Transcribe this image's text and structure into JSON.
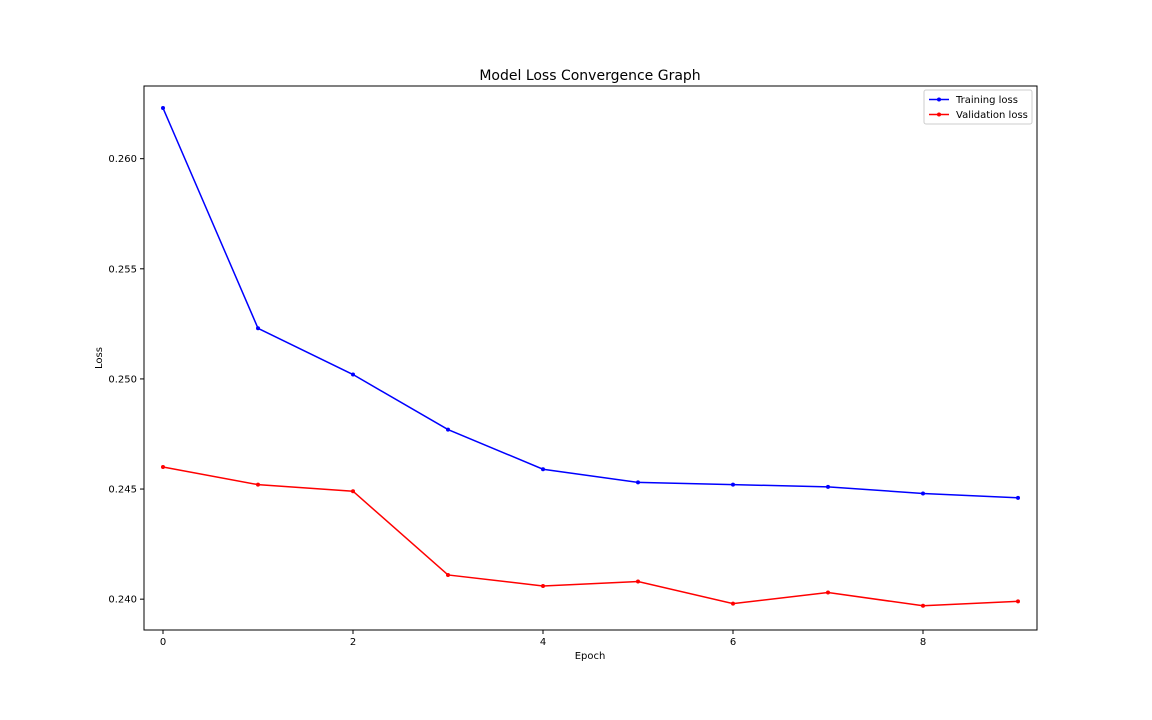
{
  "chart_data": {
    "type": "line",
    "title": "Model Loss Convergence Graph",
    "xlabel": "Epoch",
    "ylabel": "Loss",
    "x": [
      0,
      1,
      2,
      3,
      4,
      5,
      6,
      7,
      8,
      9
    ],
    "xlim": [
      -0.2,
      9.2
    ],
    "ylim": [
      0.2386,
      0.2633
    ],
    "xticks": [
      0,
      2,
      4,
      6,
      8
    ],
    "yticks": [
      0.24,
      0.245,
      0.25,
      0.255,
      0.26
    ],
    "ytick_labels": [
      "0.240",
      "0.245",
      "0.250",
      "0.255",
      "0.260"
    ],
    "grid": false,
    "legend_position": "top-right",
    "series": [
      {
        "name": "Training loss",
        "color": "#0000ff",
        "marker": "dot",
        "values": [
          0.2623,
          0.2523,
          0.2502,
          0.2477,
          0.2459,
          0.2453,
          0.2452,
          0.2451,
          0.2448,
          0.2446
        ]
      },
      {
        "name": "Validation loss",
        "color": "#ff0000",
        "marker": "dot",
        "values": [
          0.246,
          0.2452,
          0.2449,
          0.2411,
          0.2406,
          0.2408,
          0.2398,
          0.2403,
          0.2397,
          0.2399
        ]
      }
    ]
  }
}
